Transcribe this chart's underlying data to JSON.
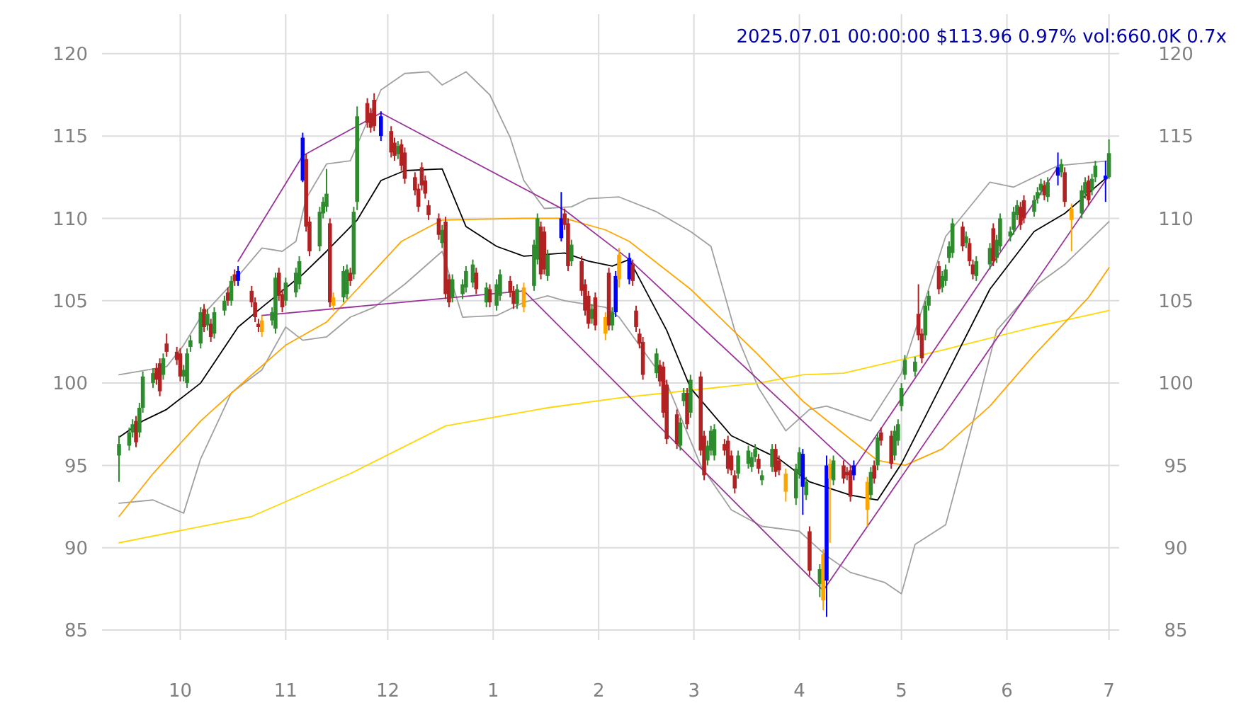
{
  "chart_data": {
    "type": "candlestick",
    "title": "2025.07.01 00:00:00 $113.96 0.97% vol:660.0K 0.7x",
    "x": [
      "2024-09-13",
      "2024-09-16",
      "2024-09-17",
      "2024-09-18",
      "2024-09-19",
      "2024-09-20",
      "2024-09-23",
      "2024-09-24",
      "2024-09-25",
      "2024-09-26",
      "2024-09-27",
      "2024-09-30",
      "2024-10-01",
      "2024-10-02",
      "2024-10-03",
      "2024-10-04",
      "2024-10-07",
      "2024-10-08",
      "2024-10-09",
      "2024-10-10",
      "2024-10-11",
      "2024-10-14",
      "2024-10-15",
      "2024-10-16",
      "2024-10-17",
      "2024-10-18",
      "2024-10-22",
      "2024-10-23",
      "2024-10-24",
      "2024-10-25",
      "2024-10-28",
      "2024-10-29",
      "2024-10-30",
      "2024-10-31",
      "2024-11-01",
      "2024-11-04",
      "2024-11-05",
      "2024-11-06",
      "2024-11-07",
      "2024-11-08",
      "2024-11-11",
      "2024-11-12",
      "2024-11-13",
      "2024-11-14",
      "2024-11-15",
      "2024-11-18",
      "2024-11-19",
      "2024-11-20",
      "2024-11-21",
      "2024-11-22",
      "2024-11-25",
      "2024-11-26",
      "2024-11-27",
      "2024-11-29",
      "2024-12-02",
      "2024-12-03",
      "2024-12-04",
      "2024-12-05",
      "2024-12-06",
      "2024-12-09",
      "2024-12-10",
      "2024-12-11",
      "2024-12-12",
      "2024-12-13",
      "2024-12-16",
      "2024-12-17",
      "2024-12-18",
      "2024-12-19",
      "2024-12-20",
      "2024-12-23",
      "2024-12-24",
      "2024-12-26",
      "2024-12-27",
      "2024-12-30",
      "2024-12-31",
      "2025-01-02",
      "2025-01-03",
      "2025-01-06",
      "2025-01-07",
      "2025-01-08",
      "2025-01-10",
      "2025-01-13",
      "2025-01-14",
      "2025-01-15",
      "2025-01-16",
      "2025-01-17",
      "2025-01-21",
      "2025-01-22",
      "2025-01-23",
      "2025-01-24",
      "2025-01-27",
      "2025-01-28",
      "2025-01-29",
      "2025-01-30",
      "2025-01-31",
      "2025-02-03",
      "2025-02-04",
      "2025-02-05",
      "2025-02-06",
      "2025-02-07",
      "2025-02-10",
      "2025-02-11",
      "2025-02-12",
      "2025-02-13",
      "2025-02-14",
      "2025-02-18",
      "2025-02-19",
      "2025-02-20",
      "2025-02-21",
      "2025-02-24",
      "2025-02-25",
      "2025-02-26",
      "2025-02-27",
      "2025-02-28",
      "2025-03-03",
      "2025-03-04",
      "2025-03-05",
      "2025-03-06",
      "2025-03-07",
      "2025-03-10",
      "2025-03-11",
      "2025-03-12",
      "2025-03-13",
      "2025-03-14",
      "2025-03-17",
      "2025-03-18",
      "2025-03-19",
      "2025-03-20",
      "2025-03-21",
      "2025-03-24",
      "2025-03-25",
      "2025-03-26",
      "2025-03-28",
      "2025-03-31",
      "2025-04-01",
      "2025-04-02",
      "2025-04-03",
      "2025-04-04",
      "2025-04-07",
      "2025-04-08",
      "2025-04-09",
      "2025-04-10",
      "2025-04-11",
      "2025-04-14",
      "2025-04-15",
      "2025-04-16",
      "2025-04-17",
      "2025-04-21",
      "2025-04-22",
      "2025-04-23",
      "2025-04-24",
      "2025-04-25",
      "2025-04-28",
      "2025-04-29",
      "2025-04-30",
      "2025-05-01",
      "2025-05-02",
      "2025-05-05",
      "2025-05-06",
      "2025-05-07",
      "2025-05-08",
      "2025-05-09",
      "2025-05-12",
      "2025-05-13",
      "2025-05-14",
      "2025-05-15",
      "2025-05-16",
      "2025-05-19",
      "2025-05-20",
      "2025-05-21",
      "2025-05-22",
      "2025-05-23",
      "2025-05-27",
      "2025-05-28",
      "2025-05-29",
      "2025-05-30",
      "2025-06-02",
      "2025-06-03",
      "2025-06-04",
      "2025-06-05",
      "2025-06-06",
      "2025-06-09",
      "2025-06-10",
      "2025-06-11",
      "2025-06-12",
      "2025-06-13",
      "2025-06-16",
      "2025-06-17",
      "2025-06-18",
      "2025-06-20",
      "2025-06-23",
      "2025-06-24",
      "2025-06-25",
      "2025-06-26",
      "2025-06-27",
      "2025-06-30",
      "2025-07-01"
    ],
    "ohlc": [
      [
        95.6,
        96.8,
        94.0,
        96.3
      ],
      [
        96.2,
        97.3,
        95.9,
        97.0
      ],
      [
        97.0,
        97.8,
        96.7,
        97.5
      ],
      [
        97.7,
        98.0,
        96.1,
        96.4
      ],
      [
        97.0,
        98.8,
        96.7,
        98.5
      ],
      [
        98.5,
        100.7,
        98.2,
        100.4
      ],
      [
        100.0,
        100.9,
        99.7,
        100.6
      ],
      [
        100.9,
        101.2,
        99.9,
        100.2
      ],
      [
        101.2,
        101.5,
        99.2,
        99.5
      ],
      [
        100.5,
        101.8,
        100.2,
        101.5
      ],
      [
        102.4,
        103.0,
        101.6,
        101.9
      ],
      [
        101.9,
        102.2,
        101.1,
        101.4
      ],
      [
        101.8,
        102.1,
        100.1,
        100.4
      ],
      [
        100.4,
        101.1,
        100.1,
        100.8
      ],
      [
        100.0,
        102.1,
        99.7,
        101.8
      ],
      [
        102.2,
        102.9,
        101.9,
        102.6
      ],
      [
        102.4,
        104.6,
        102.1,
        104.3
      ],
      [
        104.5,
        104.8,
        103.1,
        103.4
      ],
      [
        103.5,
        104.5,
        103.2,
        104.2
      ],
      [
        103.6,
        103.9,
        102.5,
        102.8
      ],
      [
        103.0,
        104.6,
        102.7,
        104.3
      ],
      [
        104.4,
        105.3,
        104.1,
        105.0
      ],
      [
        105.5,
        105.8,
        104.7,
        105.0
      ],
      [
        105.0,
        106.5,
        104.7,
        106.2
      ],
      [
        106.6,
        106.9,
        105.9,
        106.2
      ],
      [
        106.8,
        107.1,
        105.9,
        106.2
      ],
      [
        105.6,
        105.9,
        104.6,
        104.9
      ],
      [
        104.9,
        105.2,
        103.7,
        104.0
      ],
      [
        103.6,
        103.9,
        103.1,
        103.4
      ],
      [
        103.8,
        104.1,
        102.8,
        103.1
      ],
      [
        103.8,
        104.6,
        103.5,
        104.3
      ],
      [
        103.3,
        106.7,
        103.0,
        106.4
      ],
      [
        106.7,
        107.0,
        105.0,
        105.3
      ],
      [
        105.4,
        105.7,
        104.3,
        104.6
      ],
      [
        105.0,
        106.4,
        104.7,
        106.1
      ],
      [
        105.5,
        107.0,
        105.2,
        106.7
      ],
      [
        106.0,
        107.7,
        105.7,
        107.4
      ],
      [
        112.3,
        115.2,
        112.2,
        114.9
      ],
      [
        113.6,
        113.9,
        109.2,
        109.5
      ],
      [
        109.8,
        110.1,
        107.7,
        108.0
      ],
      [
        108.3,
        110.7,
        108.0,
        110.4
      ],
      [
        110.3,
        111.3,
        110.0,
        111.0
      ],
      [
        110.7,
        113.0,
        110.4,
        111.5
      ],
      [
        109.7,
        110.0,
        104.6,
        104.9
      ],
      [
        104.7,
        105.5,
        104.4,
        105.2
      ],
      [
        105.2,
        107.1,
        104.9,
        106.8
      ],
      [
        105.4,
        107.2,
        105.1,
        106.9
      ],
      [
        106.7,
        107.0,
        105.9,
        106.2
      ],
      [
        106.6,
        110.7,
        106.3,
        110.4
      ],
      [
        111.0,
        116.8,
        110.5,
        116.2
      ],
      [
        117.0,
        117.3,
        115.5,
        115.8
      ],
      [
        116.4,
        116.7,
        115.2,
        115.5
      ],
      [
        117.2,
        117.6,
        115.3,
        115.6
      ],
      [
        116.2,
        116.5,
        114.7,
        115.0
      ],
      [
        115.3,
        115.6,
        113.7,
        114.0
      ],
      [
        114.6,
        114.9,
        113.5,
        113.8
      ],
      [
        113.9,
        114.7,
        113.6,
        114.4
      ],
      [
        114.5,
        114.8,
        112.9,
        113.2
      ],
      [
        114.0,
        114.3,
        112.1,
        112.4
      ],
      [
        112.5,
        112.8,
        111.4,
        111.7
      ],
      [
        111.8,
        112.1,
        110.4,
        110.7
      ],
      [
        113.1,
        113.4,
        111.7,
        112.0
      ],
      [
        112.3,
        112.6,
        111.2,
        111.5
      ],
      [
        110.8,
        111.1,
        109.9,
        110.2
      ],
      [
        110.0,
        110.3,
        108.7,
        109.0
      ],
      [
        108.5,
        109.6,
        108.2,
        109.3
      ],
      [
        109.8,
        110.1,
        105.1,
        105.4
      ],
      [
        106.3,
        106.6,
        104.6,
        104.9
      ],
      [
        105.2,
        106.6,
        104.9,
        106.3
      ],
      [
        105.4,
        106.3,
        105.1,
        106.0
      ],
      [
        105.8,
        107.1,
        105.5,
        106.8
      ],
      [
        106.1,
        107.5,
        105.8,
        107.2
      ],
      [
        106.7,
        107.0,
        105.4,
        105.7
      ],
      [
        104.9,
        106.1,
        104.6,
        105.8
      ],
      [
        105.7,
        106.0,
        104.6,
        104.9
      ],
      [
        104.7,
        106.3,
        104.4,
        106.0
      ],
      [
        105.3,
        106.9,
        105.0,
        106.6
      ],
      [
        106.2,
        106.5,
        105.2,
        105.5
      ],
      [
        105.6,
        105.9,
        104.5,
        104.8
      ],
      [
        104.8,
        106.0,
        104.5,
        105.7
      ],
      [
        105.8,
        106.1,
        104.3,
        104.6
      ],
      [
        105.9,
        108.7,
        105.6,
        108.4
      ],
      [
        107.5,
        110.3,
        107.2,
        110.0
      ],
      [
        109.5,
        109.8,
        106.3,
        106.6
      ],
      [
        109.2,
        109.5,
        106.6,
        106.9
      ],
      [
        106.5,
        108.1,
        106.2,
        107.8
      ],
      [
        110.0,
        111.6,
        108.6,
        108.8
      ],
      [
        110.3,
        110.6,
        109.3,
        109.6
      ],
      [
        109.7,
        110.0,
        106.8,
        107.1
      ],
      [
        107.4,
        108.7,
        107.1,
        108.4
      ],
      [
        107.4,
        107.7,
        105.3,
        105.6
      ],
      [
        106.0,
        106.3,
        104.1,
        104.4
      ],
      [
        105.3,
        105.6,
        103.3,
        103.6
      ],
      [
        103.9,
        104.8,
        103.6,
        104.5
      ],
      [
        105.2,
        105.5,
        103.2,
        103.5
      ],
      [
        104.0,
        104.3,
        102.6,
        103.0
      ],
      [
        106.7,
        107.0,
        103.2,
        103.5
      ],
      [
        103.5,
        104.6,
        103.2,
        104.3
      ],
      [
        104.3,
        106.8,
        104.0,
        106.5
      ],
      [
        106.3,
        108.2,
        105.8,
        107.8
      ],
      [
        107.6,
        107.9,
        106.0,
        106.3
      ],
      [
        107.2,
        107.5,
        105.9,
        106.2
      ],
      [
        104.4,
        104.7,
        103.1,
        103.4
      ],
      [
        103.0,
        103.3,
        102.1,
        102.4
      ],
      [
        102.5,
        102.8,
        100.2,
        100.5
      ],
      [
        100.6,
        102.1,
        100.3,
        101.8
      ],
      [
        101.1,
        101.4,
        99.8,
        100.1
      ],
      [
        101.0,
        101.3,
        97.9,
        98.2
      ],
      [
        99.9,
        100.2,
        96.3,
        96.6
      ],
      [
        98.1,
        98.4,
        96.0,
        96.3
      ],
      [
        96.2,
        97.9,
        95.9,
        97.6
      ],
      [
        98.9,
        99.7,
        98.6,
        99.4
      ],
      [
        99.4,
        99.7,
        97.2,
        97.5
      ],
      [
        98.2,
        100.5,
        97.9,
        100.2
      ],
      [
        100.4,
        100.7,
        95.6,
        95.9
      ],
      [
        96.8,
        97.1,
        94.1,
        94.4
      ],
      [
        95.3,
        96.5,
        95.0,
        96.2
      ],
      [
        95.9,
        97.4,
        95.6,
        97.1
      ],
      [
        95.6,
        97.5,
        95.3,
        97.2
      ],
      [
        96.3,
        96.6,
        95.6,
        95.9
      ],
      [
        96.5,
        96.8,
        94.5,
        94.8
      ],
      [
        95.6,
        95.9,
        94.4,
        94.7
      ],
      [
        94.4,
        94.7,
        93.3,
        93.6
      ],
      [
        94.5,
        95.9,
        94.2,
        95.6
      ],
      [
        95.1,
        96.2,
        94.8,
        95.9
      ],
      [
        94.9,
        95.8,
        94.6,
        95.5
      ],
      [
        95.5,
        96.3,
        95.2,
        96.0
      ],
      [
        95.4,
        95.7,
        94.5,
        94.8
      ],
      [
        94.1,
        94.7,
        93.8,
        94.4
      ],
      [
        94.9,
        96.3,
        94.6,
        96.0
      ],
      [
        96.0,
        96.3,
        94.3,
        94.6
      ],
      [
        95.3,
        95.6,
        94.4,
        94.7
      ],
      [
        94.5,
        94.8,
        92.8,
        93.4
      ],
      [
        93.0,
        95.1,
        92.6,
        94.8
      ],
      [
        94.5,
        96.1,
        94.2,
        95.8
      ],
      [
        95.7,
        96.0,
        92.0,
        93.7
      ],
      [
        93.2,
        94.3,
        92.9,
        94.0
      ],
      [
        91.0,
        91.3,
        88.3,
        88.6
      ],
      [
        87.8,
        89.0,
        87.0,
        88.7
      ],
      [
        89.6,
        89.9,
        86.2,
        86.8
      ],
      [
        88.0,
        95.6,
        85.8,
        95.0
      ],
      [
        95.1,
        95.4,
        90.3,
        94.2
      ],
      [
        94.1,
        95.6,
        93.8,
        95.3
      ],
      [
        95.0,
        95.3,
        93.9,
        94.2
      ],
      [
        94.6,
        94.9,
        94.1,
        94.4
      ],
      [
        94.7,
        95.0,
        92.8,
        93.1
      ],
      [
        95.0,
        95.3,
        94.1,
        94.4
      ],
      [
        94.0,
        94.3,
        91.3,
        92.3
      ],
      [
        93.2,
        94.9,
        92.9,
        94.6
      ],
      [
        95.0,
        95.3,
        93.9,
        94.2
      ],
      [
        95.0,
        97.0,
        94.7,
        96.7
      ],
      [
        97.0,
        97.3,
        96.2,
        96.5
      ],
      [
        96.8,
        97.1,
        94.8,
        95.1
      ],
      [
        95.6,
        97.4,
        95.3,
        97.1
      ],
      [
        96.5,
        97.8,
        96.2,
        97.5
      ],
      [
        98.6,
        100.0,
        98.3,
        99.7
      ],
      [
        100.5,
        101.7,
        100.2,
        101.4
      ],
      [
        100.7,
        101.6,
        100.4,
        101.3
      ],
      [
        104.2,
        106.0,
        102.6,
        102.9
      ],
      [
        103.0,
        103.3,
        101.2,
        101.5
      ],
      [
        102.9,
        105.0,
        102.6,
        104.7
      ],
      [
        104.7,
        105.6,
        104.4,
        105.3
      ],
      [
        107.1,
        107.4,
        105.4,
        105.7
      ],
      [
        105.8,
        106.8,
        105.5,
        106.5
      ],
      [
        106.2,
        107.2,
        105.9,
        106.9
      ],
      [
        107.6,
        108.6,
        107.3,
        108.3
      ],
      [
        107.9,
        110.0,
        107.6,
        109.7
      ],
      [
        109.5,
        109.8,
        108.0,
        108.3
      ],
      [
        108.5,
        109.2,
        108.2,
        108.9
      ],
      [
        108.5,
        108.8,
        107.1,
        107.4
      ],
      [
        107.2,
        107.5,
        106.3,
        106.6
      ],
      [
        106.5,
        107.7,
        106.2,
        107.4
      ],
      [
        107.2,
        108.5,
        106.9,
        108.2
      ],
      [
        109.4,
        109.7,
        107.1,
        107.4
      ],
      [
        107.6,
        109.0,
        107.3,
        108.7
      ],
      [
        108.3,
        110.3,
        108.0,
        110.0
      ],
      [
        108.9,
        109.5,
        108.6,
        109.2
      ],
      [
        109.3,
        110.7,
        109.0,
        110.4
      ],
      [
        110.2,
        111.1,
        109.9,
        110.8
      ],
      [
        110.7,
        111.0,
        109.3,
        109.6
      ],
      [
        111.1,
        111.4,
        109.7,
        110.0
      ],
      [
        110.4,
        111.4,
        110.1,
        111.1
      ],
      [
        111.2,
        111.9,
        110.9,
        111.6
      ],
      [
        111.7,
        112.4,
        111.4,
        112.1
      ],
      [
        112.0,
        112.3,
        111.1,
        111.4
      ],
      [
        111.3,
        112.5,
        111.0,
        112.2
      ],
      [
        112.6,
        114.0,
        112.0,
        113.1
      ],
      [
        112.8,
        113.6,
        112.5,
        113.3
      ],
      [
        112.8,
        113.1,
        110.7,
        111.0
      ],
      [
        110.6,
        110.9,
        108.0,
        109.9
      ],
      [
        110.3,
        112.0,
        110.0,
        111.7
      ],
      [
        111.5,
        112.5,
        111.2,
        112.2
      ],
      [
        112.3,
        112.6,
        110.8,
        111.1
      ],
      [
        111.7,
        112.7,
        111.4,
        112.4
      ],
      [
        112.5,
        113.5,
        112.2,
        113.2
      ],
      [
        112.6,
        113.5,
        111.0,
        112.4
      ],
      [
        112.5,
        114.8,
        112.4,
        113.96
      ]
    ],
    "colors": [
      "#2e8b2e",
      "#2e8b2e",
      "#2e8b2e",
      "#b22222",
      "#2e8b2e",
      "#2e8b2e",
      "#2e8b2e",
      "#b22222",
      "#b22222",
      "#2e8b2e",
      "#b22222",
      "#b22222",
      "#b22222",
      "#2e8b2e",
      "#2e8b2e",
      "#2e8b2e",
      "#2e8b2e",
      "#b22222",
      "#2e8b2e",
      "#b22222",
      "#2e8b2e",
      "#2e8b2e",
      "#b22222",
      "#2e8b2e",
      "#b22222",
      "#0000ff",
      "#b22222",
      "#b22222",
      "#b22222",
      "#ffa500",
      "#2e8b2e",
      "#2e8b2e",
      "#b22222",
      "#b22222",
      "#2e8b2e",
      "#2e8b2e",
      "#2e8b2e",
      "#0000ff",
      "#b22222",
      "#b22222",
      "#2e8b2e",
      "#2e8b2e",
      "#2e8b2e",
      "#b22222",
      "#ffa500",
      "#2e8b2e",
      "#2e8b2e",
      "#b22222",
      "#2e8b2e",
      "#2e8b2e",
      "#b22222",
      "#b22222",
      "#b22222",
      "#0000ff",
      "#b22222",
      "#b22222",
      "#2e8b2e",
      "#b22222",
      "#b22222",
      "#b22222",
      "#b22222",
      "#b22222",
      "#b22222",
      "#b22222",
      "#b22222",
      "#2e8b2e",
      "#b22222",
      "#b22222",
      "#2e8b2e",
      "#2e8b2e",
      "#2e8b2e",
      "#2e8b2e",
      "#b22222",
      "#2e8b2e",
      "#b22222",
      "#2e8b2e",
      "#2e8b2e",
      "#b22222",
      "#b22222",
      "#2e8b2e",
      "#ffa500",
      "#2e8b2e",
      "#2e8b2e",
      "#b22222",
      "#b22222",
      "#2e8b2e",
      "#0000ff",
      "#b22222",
      "#b22222",
      "#2e8b2e",
      "#b22222",
      "#b22222",
      "#b22222",
      "#2e8b2e",
      "#b22222",
      "#ffa500",
      "#b22222",
      "#2e8b2e",
      "#0000ff",
      "#ffa500",
      "#0000ff",
      "#b22222",
      "#b22222",
      "#b22222",
      "#b22222",
      "#2e8b2e",
      "#b22222",
      "#b22222",
      "#b22222",
      "#b22222",
      "#2e8b2e",
      "#2e8b2e",
      "#b22222",
      "#2e8b2e",
      "#b22222",
      "#b22222",
      "#2e8b2e",
      "#2e8b2e",
      "#2e8b2e",
      "#b22222",
      "#b22222",
      "#b22222",
      "#b22222",
      "#2e8b2e",
      "#2e8b2e",
      "#2e8b2e",
      "#2e8b2e",
      "#b22222",
      "#2e8b2e",
      "#2e8b2e",
      "#b22222",
      "#b22222",
      "#ffa500",
      "#2e8b2e",
      "#2e8b2e",
      "#0000ff",
      "#2e8b2e",
      "#b22222",
      "#2e8b2e",
      "#ffa500",
      "#0000ff",
      "#ffa500",
      "#2e8b2e",
      "#b22222",
      "#b22222",
      "#b22222",
      "#0000ff",
      "#ffa500",
      "#2e8b2e",
      "#b22222",
      "#2e8b2e",
      "#b22222",
      "#b22222",
      "#2e8b2e",
      "#2e8b2e",
      "#2e8b2e",
      "#2e8b2e",
      "#2e8b2e",
      "#b22222",
      "#b22222",
      "#2e8b2e",
      "#2e8b2e",
      "#b22222",
      "#2e8b2e",
      "#2e8b2e",
      "#2e8b2e",
      "#2e8b2e",
      "#b22222",
      "#2e8b2e",
      "#b22222",
      "#b22222",
      "#2e8b2e",
      "#2e8b2e",
      "#b22222",
      "#2e8b2e",
      "#2e8b2e",
      "#2e8b2e",
      "#2e8b2e",
      "#2e8b2e",
      "#b22222",
      "#b22222",
      "#2e8b2e",
      "#2e8b2e",
      "#2e8b2e",
      "#b22222",
      "#2e8b2e",
      "#0000ff",
      "#2e8b2e",
      "#b22222",
      "#ffa500",
      "#2e8b2e",
      "#2e8b2e",
      "#b22222",
      "#2e8b2e",
      "#2e8b2e",
      "#0000ff",
      "#2e8b2e"
    ],
    "series": [
      {
        "type": "line",
        "color": "#a0a0a0",
        "x": [
          "2024-09-13",
          "2024-09-27",
          "2024-10-02",
          "2024-10-07",
          "2024-10-16",
          "2024-10-25",
          "2024-10-31",
          "2024-11-04",
          "2024-11-07",
          "2024-11-13",
          "2024-11-20",
          "2024-11-29",
          "2024-12-06",
          "2024-12-13",
          "2024-12-17",
          "2024-12-24",
          "2024-12-31",
          "2025-01-06",
          "2025-01-10",
          "2025-01-16",
          "2025-01-24",
          "2025-01-29",
          "2025-02-07",
          "2025-02-18",
          "2025-02-28",
          "2025-03-06",
          "2025-03-13",
          "2025-03-20",
          "2025-03-28",
          "2025-04-04",
          "2025-04-09",
          "2025-04-22",
          "2025-05-01",
          "2025-05-14",
          "2025-05-27",
          "2025-06-03",
          "2025-06-16",
          "2025-07-01"
        ],
        "values": [
          100.5,
          101.0,
          102.3,
          104.0,
          106.0,
          108.2,
          108.0,
          108.6,
          111.2,
          113.3,
          113.5,
          117.8,
          118.8,
          118.9,
          118.1,
          118.9,
          117.5,
          114.9,
          112.3,
          110.6,
          110.7,
          111.2,
          111.3,
          110.4,
          109.2,
          108.3,
          103.2,
          99.7,
          97.1,
          98.4,
          98.6,
          97.7,
          100.6,
          108.9,
          112.2,
          111.9,
          113.2,
          113.5
        ]
      },
      {
        "type": "line",
        "color": "#a0a0a0",
        "x": [
          "2024-09-13",
          "2024-09-23",
          "2024-10-02",
          "2024-10-07",
          "2024-10-16",
          "2024-10-25",
          "2024-11-01",
          "2024-11-06",
          "2024-11-13",
          "2024-11-20",
          "2024-11-27",
          "2024-12-06",
          "2024-12-17",
          "2024-12-23",
          "2025-01-02",
          "2025-01-10",
          "2025-01-17",
          "2025-01-22",
          "2025-02-03",
          "2025-02-07",
          "2025-02-21",
          "2025-03-03",
          "2025-03-12",
          "2025-03-21",
          "2025-04-01",
          "2025-04-09",
          "2025-04-16",
          "2025-04-26",
          "2025-05-01",
          "2025-05-05",
          "2025-05-14",
          "2025-05-21",
          "2025-05-29",
          "2025-06-10",
          "2025-06-18",
          "2025-07-01"
        ],
        "values": [
          92.7,
          92.9,
          92.1,
          95.4,
          99.4,
          100.8,
          103.4,
          102.6,
          102.8,
          104.0,
          104.6,
          106.0,
          108.0,
          104.0,
          104.1,
          104.9,
          105.3,
          105.0,
          104.6,
          104.0,
          100.0,
          95.0,
          92.3,
          91.3,
          91.0,
          89.5,
          88.5,
          87.9,
          87.2,
          90.2,
          91.4,
          96.8,
          103.2,
          106.0,
          107.2,
          109.8
        ]
      },
      {
        "type": "line",
        "color": "#ffd700",
        "x": [
          "2024-09-13",
          "2024-10-22",
          "2024-11-20",
          "2024-12-18",
          "2025-01-17",
          "2025-02-07",
          "2025-03-20",
          "2025-04-02",
          "2025-04-14",
          "2025-05-13",
          "2025-06-09",
          "2025-07-01"
        ],
        "values": [
          90.3,
          91.9,
          94.5,
          97.4,
          98.5,
          99.1,
          100.0,
          100.5,
          100.6,
          102.0,
          103.4,
          104.4
        ]
      },
      {
        "type": "line",
        "color": "#ffa500",
        "x": [
          "2024-09-13",
          "2024-09-23",
          "2024-10-07",
          "2024-10-22",
          "2024-11-01",
          "2024-11-13",
          "2024-11-22",
          "2024-12-05",
          "2024-12-17",
          "2025-01-10",
          "2025-01-22",
          "2025-02-03",
          "2025-02-10",
          "2025-02-28",
          "2025-03-20",
          "2025-04-02",
          "2025-04-16",
          "2025-04-24",
          "2025-05-02",
          "2025-05-13",
          "2025-05-27",
          "2025-06-09",
          "2025-06-25",
          "2025-07-01"
        ],
        "values": [
          91.9,
          94.5,
          97.7,
          100.5,
          102.3,
          103.7,
          105.7,
          108.6,
          109.9,
          110.0,
          110.0,
          109.3,
          108.6,
          105.7,
          101.7,
          98.9,
          96.6,
          95.3,
          95.0,
          96.0,
          98.6,
          101.7,
          105.2,
          107.0
        ]
      },
      {
        "type": "line",
        "color": "#000000",
        "x": [
          "2024-09-13",
          "2024-09-20",
          "2024-09-27",
          "2024-10-07",
          "2024-10-18",
          "2024-10-25",
          "2024-11-06",
          "2024-11-13",
          "2024-11-22",
          "2024-11-29",
          "2024-12-06",
          "2024-12-17",
          "2024-12-24",
          "2025-01-02",
          "2025-01-10",
          "2025-01-22",
          "2025-01-29",
          "2025-02-05",
          "2025-02-10",
          "2025-02-21",
          "2025-02-28",
          "2025-03-12",
          "2025-03-26",
          "2025-04-04",
          "2025-04-16",
          "2025-04-24",
          "2025-05-01",
          "2025-05-13",
          "2025-05-27",
          "2025-06-09",
          "2025-06-18",
          "2025-07-01"
        ],
        "values": [
          96.7,
          97.7,
          98.4,
          100.0,
          103.4,
          104.6,
          106.6,
          108.0,
          109.9,
          112.3,
          112.9,
          113.0,
          109.5,
          108.3,
          107.7,
          107.9,
          107.4,
          107.1,
          107.5,
          103.2,
          99.7,
          96.8,
          95.4,
          94.0,
          93.2,
          92.9,
          95.1,
          100.0,
          105.7,
          109.2,
          110.3,
          112.6
        ]
      },
      {
        "type": "line",
        "color": "#993399",
        "x": [
          "2024-10-18",
          "2024-11-06",
          "2024-11-29",
          "2025-01-22",
          "2025-02-10",
          "2025-04-17",
          "2025-06-16"
        ],
        "values": [
          107.4,
          113.8,
          116.4,
          110.5,
          107.5,
          94.8,
          113.1
        ]
      },
      {
        "type": "line",
        "color": "#993399",
        "x": [
          "2024-10-25",
          "2025-01-10",
          "2025-04-08",
          "2025-07-01"
        ],
        "values": [
          104.1,
          105.6,
          87.4,
          112.6
        ]
      }
    ],
    "xlim": [
      "2024-09-08",
      "2025-07-04"
    ],
    "xticks": [
      {
        "value": "2024-10-01",
        "label": "10"
      },
      {
        "value": "2024-11-01",
        "label": "11"
      },
      {
        "value": "2024-12-01",
        "label": "12"
      },
      {
        "value": "2025-01-01",
        "label": "1"
      },
      {
        "value": "2025-02-01",
        "label": "2"
      },
      {
        "value": "2025-03-01",
        "label": "3"
      },
      {
        "value": "2025-04-01",
        "label": "4"
      },
      {
        "value": "2025-05-01",
        "label": "5"
      },
      {
        "value": "2025-06-01",
        "label": "6"
      },
      {
        "value": "2025-07-01",
        "label": "7"
      }
    ],
    "ylim": [
      84.4,
      122.4
    ],
    "yticks": [
      85,
      90,
      95,
      100,
      105,
      110,
      115,
      120
    ],
    "y2lim": [
      84.4,
      122.4
    ],
    "y2ticks": [
      85,
      90,
      95,
      100,
      105,
      110,
      115,
      120
    ],
    "grid": true
  }
}
